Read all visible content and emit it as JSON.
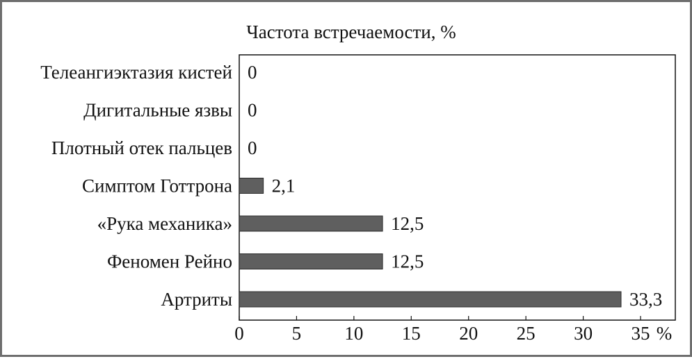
{
  "chart_data": {
    "type": "bar",
    "orientation": "horizontal",
    "title": "Частота встречаемости, %",
    "categories": [
      "Телеангиэктазия кистей",
      "Дигитальные язвы",
      "Плотный отек пальцев",
      "Симптом Готтрона",
      "«Рука механика»",
      "Феномен Рейно",
      "Артриты"
    ],
    "values": [
      0,
      0,
      0,
      2.1,
      12.5,
      12.5,
      33.3
    ],
    "value_labels": [
      "0",
      "0",
      "0",
      "2,1",
      "12,5",
      "12,5",
      "33,3"
    ],
    "xlim": [
      0,
      35
    ],
    "xticks": [
      "0",
      "5",
      "10",
      "15",
      "20",
      "25",
      "30",
      "35"
    ],
    "xtick_values": [
      0,
      5,
      10,
      15,
      20,
      25,
      30,
      35
    ],
    "x_unit": "%",
    "grid": false,
    "legend": "none",
    "colors": {
      "bar_fill": "#5f5f5f",
      "bar_stroke": "#2a2a2a",
      "frame": "#6e6e6e"
    }
  }
}
